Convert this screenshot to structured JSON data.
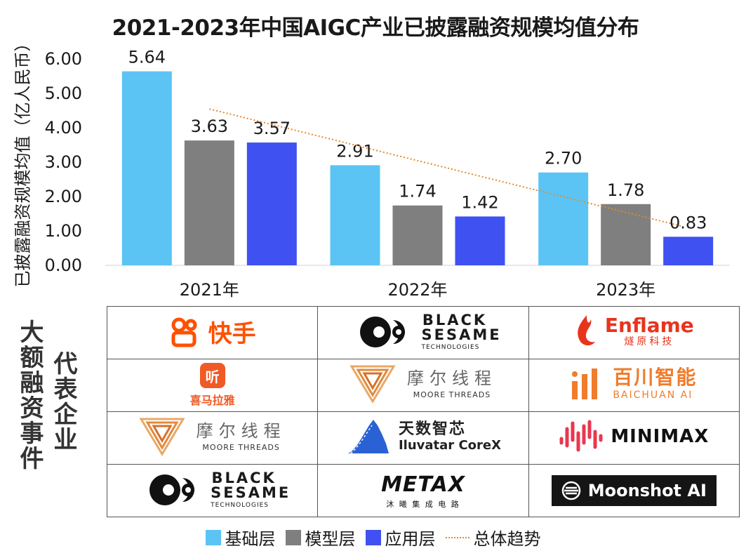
{
  "chart_data": {
    "type": "bar",
    "title": "2021-2023年中国AIGC产业已披露融资规模均值分布",
    "ylabel": "已披露融资规模均值（亿人民币）",
    "xlabel": "",
    "categories": [
      "2021年",
      "2022年",
      "2023年"
    ],
    "ylim": [
      0,
      6
    ],
    "yticks": [
      "0.00",
      "1.00",
      "2.00",
      "3.00",
      "4.00",
      "5.00",
      "6.00"
    ],
    "series": [
      {
        "name": "基础层",
        "color": "#5bc4f5",
        "values": [
          5.64,
          2.91,
          2.7
        ],
        "labels": [
          "5.64",
          "2.91",
          "2.70"
        ]
      },
      {
        "name": "模型层",
        "color": "#7f7f7f",
        "values": [
          3.63,
          1.74,
          1.78
        ],
        "labels": [
          "3.63",
          "1.74",
          "1.78"
        ]
      },
      {
        "name": "应用层",
        "color": "#3f51f0",
        "values": [
          3.57,
          1.42,
          0.83
        ],
        "labels": [
          "3.57",
          "1.42",
          "0.83"
        ]
      }
    ],
    "trend": {
      "name": "总体趋势",
      "color": "#e58a2a",
      "style": "dotted"
    },
    "grid": false,
    "legend_position": "bottom"
  },
  "side_labels": {
    "left": "大额融资事件",
    "right": "代表企业"
  },
  "companies": [
    [
      {
        "name": "快手",
        "icon": "kuaishou-logo"
      },
      {
        "name": "BLACK SESAME",
        "sub": "TECHNOLOGIES",
        "icon": "black-sesame-logo"
      },
      {
        "name": "Enflame",
        "sub": "燧原科技",
        "icon": "enflame-logo"
      }
    ],
    [
      {
        "name": "喜马拉雅",
        "badge": "听",
        "icon": "ximalaya-logo"
      },
      {
        "name": "摩尔线程",
        "sub": "MOORE THREADS",
        "icon": "moore-threads-logo"
      },
      {
        "name": "百川智能",
        "sub": "BAICHUAN AI",
        "icon": "baichuan-logo"
      }
    ],
    [
      {
        "name": "摩尔线程",
        "sub": "MOORE THREADS",
        "icon": "moore-threads-logo"
      },
      {
        "name": "天数智芯",
        "sub": "Iluvatar CoreX",
        "icon": "iluvatar-logo"
      },
      {
        "name": "MINIMAX",
        "icon": "minimax-logo"
      }
    ],
    [
      {
        "name": "BLACK SESAME",
        "sub": "TECHNOLOGIES",
        "icon": "black-sesame-logo"
      },
      {
        "name": "METAX",
        "sub": "沐 曦 集 成 电 路",
        "icon": "metax-logo"
      },
      {
        "name": "Moonshot AI",
        "icon": "moonshot-logo"
      }
    ]
  ]
}
